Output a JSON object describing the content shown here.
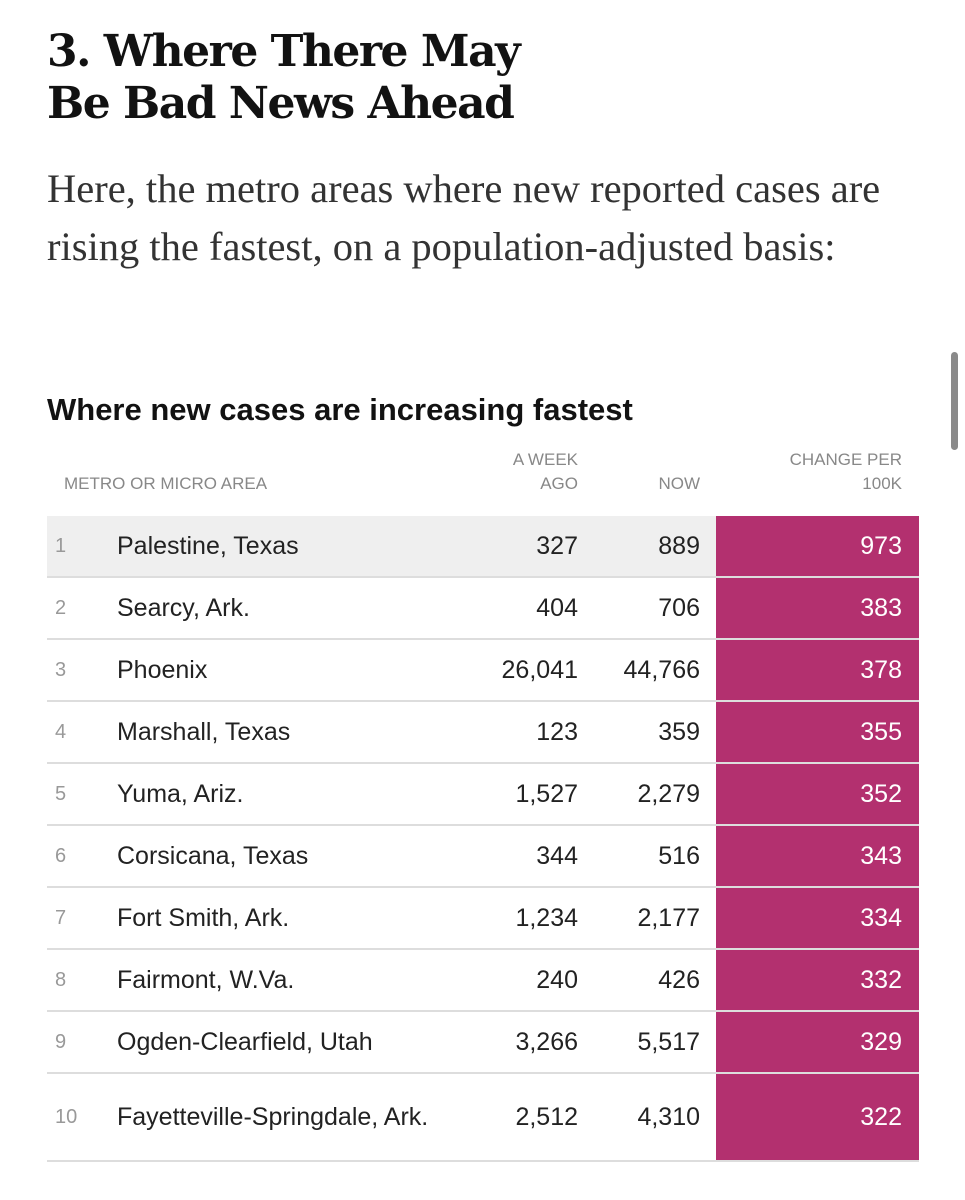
{
  "article": {
    "headline_line1": "3. Where There May",
    "headline_line2": "Be Bad News Ahead",
    "intro": "Here, the metro areas where new reported cases are rising the fastest, on a population-adjusted basis:"
  },
  "table": {
    "title": "Where new cases are increasing fastest",
    "headers": {
      "metro": "Metro or micro area",
      "week_ago_line1": "A week",
      "week_ago_line2": "ago",
      "now": "Now",
      "change_line1": "Change per",
      "change_line2": "100K"
    },
    "accent_color": "#b3306f",
    "rows": [
      {
        "rank": "1",
        "name": "Palestine, Texas",
        "week_ago": "327",
        "now": "889",
        "change": "973"
      },
      {
        "rank": "2",
        "name": "Searcy, Ark.",
        "week_ago": "404",
        "now": "706",
        "change": "383"
      },
      {
        "rank": "3",
        "name": "Phoenix",
        "week_ago": "26,041",
        "now": "44,766",
        "change": "378"
      },
      {
        "rank": "4",
        "name": "Marshall, Texas",
        "week_ago": "123",
        "now": "359",
        "change": "355"
      },
      {
        "rank": "5",
        "name": "Yuma, Ariz.",
        "week_ago": "1,527",
        "now": "2,279",
        "change": "352"
      },
      {
        "rank": "6",
        "name": "Corsicana, Texas",
        "week_ago": "344",
        "now": "516",
        "change": "343"
      },
      {
        "rank": "7",
        "name": "Fort Smith, Ark.",
        "week_ago": "1,234",
        "now": "2,177",
        "change": "334"
      },
      {
        "rank": "8",
        "name": "Fairmont, W.Va.",
        "week_ago": "240",
        "now": "426",
        "change": "332"
      },
      {
        "rank": "9",
        "name": "Ogden-Clearfield, Utah",
        "week_ago": "3,266",
        "now": "5,517",
        "change": "329"
      },
      {
        "rank": "10",
        "name": "Fayetteville-Springdale, Ark.",
        "week_ago": "2,512",
        "now": "4,310",
        "change": "322"
      }
    ]
  }
}
